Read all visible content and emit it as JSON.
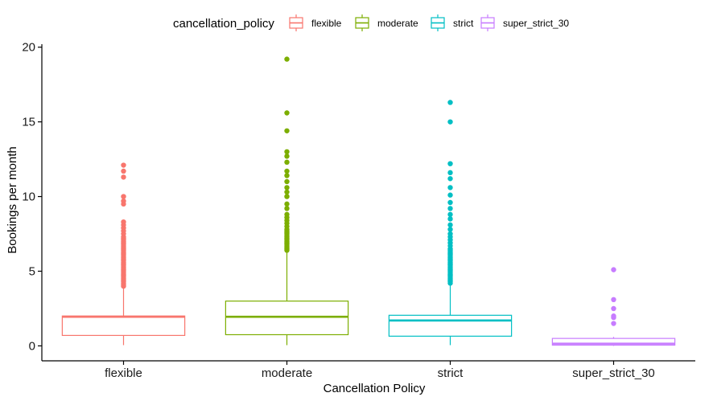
{
  "chart_data": {
    "type": "boxplot",
    "xlabel": "Cancellation Policy",
    "ylabel": "Bookings per month",
    "ylim": [
      -1,
      20.2
    ],
    "yticks": [
      0,
      5,
      10,
      15,
      20
    ],
    "categories": [
      "flexible",
      "moderate",
      "strict",
      "super_strict_30"
    ],
    "legend": {
      "title": "cancellation_policy",
      "position": "top",
      "entries": [
        "flexible",
        "moderate",
        "strict",
        "super_strict_30"
      ]
    },
    "colors": {
      "flexible": "#F8766D",
      "moderate": "#7CAE00",
      "strict": "#00BFC4",
      "super_strict_30": "#C77CFF"
    },
    "grid": false,
    "boxes": [
      {
        "category": "flexible",
        "whisker_low": 0.05,
        "q1": 0.7,
        "median": 1.95,
        "q3": 2.0,
        "whisker_high": 3.9,
        "outliers": [
          4.0,
          4.1,
          4.2,
          4.3,
          4.4,
          4.5,
          4.6,
          4.7,
          4.8,
          4.9,
          5.0,
          5.1,
          5.2,
          5.3,
          5.4,
          5.5,
          5.6,
          5.7,
          5.8,
          5.9,
          6.0,
          6.1,
          6.2,
          6.3,
          6.4,
          6.5,
          6.6,
          6.7,
          6.8,
          6.9,
          7.0,
          7.1,
          7.2,
          7.3,
          7.5,
          7.7,
          7.9,
          8.1,
          8.3,
          9.5,
          9.7,
          10.0,
          11.3,
          11.7,
          12.1
        ]
      },
      {
        "category": "moderate",
        "whisker_low": 0.05,
        "q1": 0.75,
        "median": 1.95,
        "q3": 3.0,
        "whisker_high": 6.3,
        "outliers": [
          6.4,
          6.5,
          6.6,
          6.7,
          6.8,
          6.9,
          7.0,
          7.1,
          7.2,
          7.3,
          7.4,
          7.5,
          7.6,
          7.7,
          7.8,
          8.0,
          8.2,
          8.4,
          8.6,
          8.8,
          9.2,
          9.5,
          10.0,
          10.3,
          10.6,
          11.0,
          11.4,
          11.7,
          12.3,
          12.7,
          13.0,
          14.4,
          15.6,
          19.2
        ]
      },
      {
        "category": "strict",
        "whisker_low": 0.05,
        "q1": 0.65,
        "median": 1.7,
        "q3": 2.05,
        "whisker_high": 4.1,
        "outliers": [
          4.2,
          4.3,
          4.4,
          4.5,
          4.6,
          4.7,
          4.8,
          4.9,
          5.0,
          5.1,
          5.2,
          5.3,
          5.4,
          5.5,
          5.6,
          5.7,
          5.8,
          5.9,
          6.0,
          6.1,
          6.2,
          6.3,
          6.4,
          6.5,
          6.7,
          6.9,
          7.1,
          7.3,
          7.5,
          7.8,
          8.1,
          8.5,
          8.8,
          9.2,
          9.6,
          10.1,
          10.6,
          11.2,
          11.6,
          12.2,
          15.0,
          16.3
        ]
      },
      {
        "category": "super_strict_30",
        "whisker_low": 0.0,
        "q1": 0.05,
        "median": 0.15,
        "q3": 0.5,
        "whisker_high": 0.6,
        "outliers": [
          1.5,
          1.9,
          2.0,
          2.5,
          3.1,
          5.1
        ]
      }
    ]
  }
}
